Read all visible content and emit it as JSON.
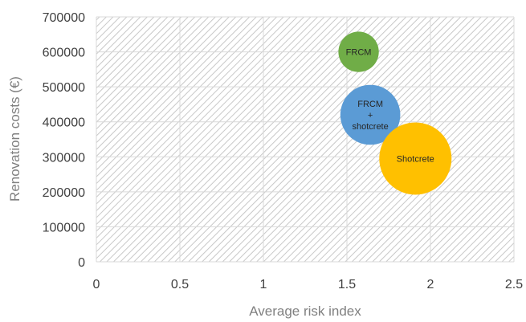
{
  "chart_data": {
    "type": "bubble",
    "title": "",
    "xlabel": "Average risk index",
    "ylabel": "Renovation costs (€)",
    "xlim": [
      0,
      2.5
    ],
    "ylim": [
      0,
      700000
    ],
    "x_ticks": [
      "0",
      "0.5",
      "1",
      "1.5",
      "2",
      "2.5"
    ],
    "y_ticks": [
      "0",
      "100000",
      "200000",
      "300000",
      "400000",
      "500000",
      "600000",
      "700000"
    ],
    "grid": true,
    "plot_background": "diagonal hatch",
    "series": [
      {
        "label_lines": [
          "FRCM"
        ],
        "x": 1.57,
        "y": 600000,
        "size": 1.0,
        "color": "#70AD47"
      },
      {
        "label_lines": [
          "FRCM",
          "+",
          "shotcrete"
        ],
        "x": 1.64,
        "y": 420000,
        "size": 2.2,
        "color": "#5B9BD5"
      },
      {
        "label_lines": [
          "Shotcrete"
        ],
        "x": 1.91,
        "y": 295000,
        "size": 3.2,
        "color": "#FFC000"
      }
    ]
  }
}
